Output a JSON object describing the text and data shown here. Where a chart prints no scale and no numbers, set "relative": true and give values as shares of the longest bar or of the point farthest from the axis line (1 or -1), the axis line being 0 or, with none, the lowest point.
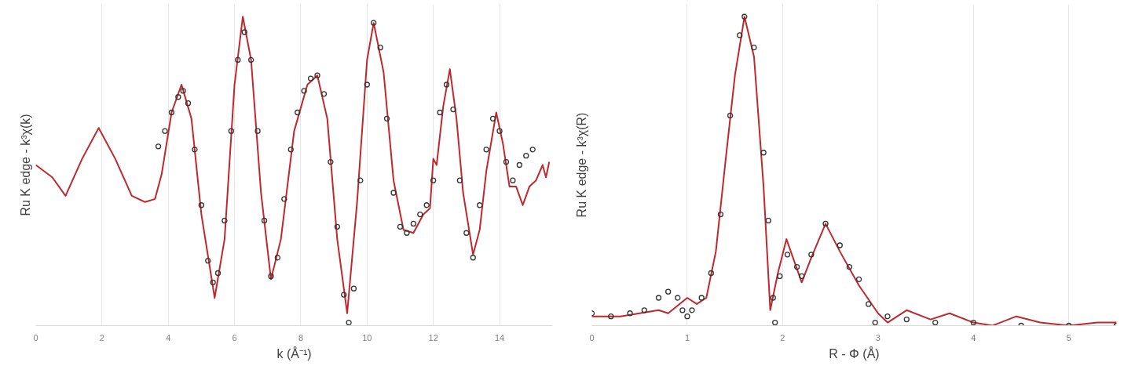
{
  "chart_data": [
    {
      "type": "line",
      "xlabel": "k (Å⁻¹)",
      "ylabel": "Ru K edge - k³χ(k)",
      "relative": true,
      "xlim": [
        0,
        15.6
      ],
      "xticks": [
        0,
        2,
        4,
        6,
        8,
        10,
        12,
        14
      ],
      "grid": "x",
      "series": [
        {
          "type": "line",
          "color": "#c0282d",
          "line_style": "solid",
          "x": [
            0,
            0.5,
            0.9,
            1.4,
            1.9,
            2.4,
            2.9,
            3.3,
            3.6,
            3.8,
            4.1,
            4.4,
            4.7,
            5.0,
            5.4,
            5.7,
            6.0,
            6.25,
            6.5,
            6.8,
            7.1,
            7.4,
            7.8,
            8.2,
            8.5,
            8.8,
            9.1,
            9.4,
            9.7,
            10.0,
            10.2,
            10.5,
            10.8,
            11.1,
            11.4,
            11.7,
            11.9,
            12.0,
            12.1,
            12.3,
            12.5,
            12.7,
            12.9,
            13.2,
            13.4,
            13.6,
            13.9,
            14.1,
            14.3,
            14.5,
            14.7,
            14.9,
            15.1,
            15.3,
            15.4,
            15.5
          ],
          "values": [
            0.52,
            0.48,
            0.42,
            0.54,
            0.64,
            0.54,
            0.42,
            0.4,
            0.41,
            0.49,
            0.69,
            0.78,
            0.67,
            0.36,
            0.09,
            0.28,
            0.78,
            1.0,
            0.86,
            0.43,
            0.15,
            0.28,
            0.63,
            0.78,
            0.81,
            0.67,
            0.28,
            0.04,
            0.4,
            0.86,
            0.98,
            0.82,
            0.47,
            0.31,
            0.3,
            0.36,
            0.38,
            0.54,
            0.52,
            0.71,
            0.83,
            0.67,
            0.43,
            0.23,
            0.31,
            0.5,
            0.69,
            0.59,
            0.45,
            0.45,
            0.39,
            0.45,
            0.47,
            0.52,
            0.48,
            0.53
          ]
        },
        {
          "type": "scatter",
          "color": "#333333",
          "marker": "circle",
          "x": [
            3.7,
            3.9,
            4.1,
            4.3,
            4.45,
            4.6,
            4.8,
            5.0,
            5.2,
            5.35,
            5.5,
            5.7,
            5.9,
            6.1,
            6.3,
            6.5,
            6.7,
            6.9,
            7.1,
            7.3,
            7.5,
            7.7,
            7.9,
            8.1,
            8.3,
            8.5,
            8.7,
            8.9,
            9.1,
            9.3,
            9.45,
            9.6,
            9.8,
            10.0,
            10.2,
            10.4,
            10.6,
            10.8,
            11.0,
            11.2,
            11.4,
            11.6,
            11.8,
            12.0,
            12.2,
            12.4,
            12.6,
            12.8,
            13.0,
            13.2,
            13.4,
            13.6,
            13.8,
            14.0,
            14.2,
            14.4,
            14.6,
            14.8,
            15.0
          ],
          "values": [
            0.58,
            0.63,
            0.69,
            0.74,
            0.76,
            0.72,
            0.57,
            0.39,
            0.21,
            0.14,
            0.17,
            0.34,
            0.63,
            0.86,
            0.95,
            0.86,
            0.63,
            0.34,
            0.16,
            0.22,
            0.41,
            0.57,
            0.69,
            0.76,
            0.8,
            0.81,
            0.75,
            0.53,
            0.32,
            0.1,
            0.01,
            0.12,
            0.47,
            0.78,
            0.98,
            0.9,
            0.67,
            0.43,
            0.32,
            0.3,
            0.33,
            0.36,
            0.39,
            0.47,
            0.69,
            0.78,
            0.7,
            0.47,
            0.3,
            0.22,
            0.39,
            0.57,
            0.67,
            0.63,
            0.53,
            0.47,
            0.52,
            0.55,
            0.57
          ]
        }
      ]
    },
    {
      "type": "line",
      "xlabel": "R - Φ (Å)",
      "ylabel": "Ru K edge - k³χ(R)",
      "relative": true,
      "xlim": [
        0,
        5.5
      ],
      "xticks": [
        0,
        1,
        2,
        3,
        4,
        5
      ],
      "grid": "x",
      "series": [
        {
          "type": "line",
          "color": "#c0282d",
          "line_style": "solid",
          "x": [
            0,
            0.3,
            0.5,
            0.7,
            0.8,
            1.0,
            1.1,
            1.2,
            1.3,
            1.4,
            1.5,
            1.6,
            1.7,
            1.8,
            1.87,
            1.95,
            2.04,
            2.2,
            2.3,
            2.45,
            2.6,
            2.8,
            3.0,
            3.1,
            3.3,
            3.55,
            3.75,
            4.0,
            4.2,
            4.45,
            4.7,
            5.0,
            5.3,
            5.5
          ],
          "values": [
            0.03,
            0.03,
            0.04,
            0.05,
            0.04,
            0.09,
            0.07,
            0.09,
            0.24,
            0.53,
            0.81,
            1.0,
            0.87,
            0.45,
            0.05,
            0.17,
            0.28,
            0.14,
            0.22,
            0.33,
            0.24,
            0.13,
            0.04,
            0.01,
            0.05,
            0.02,
            0.04,
            0.01,
            0.0,
            0.03,
            0.01,
            0.0,
            0.01,
            0.01
          ]
        },
        {
          "type": "scatter",
          "color": "#333333",
          "marker": "circle",
          "x": [
            0,
            0.2,
            0.4,
            0.55,
            0.7,
            0.8,
            0.9,
            0.95,
            1.0,
            1.05,
            1.15,
            1.25,
            1.35,
            1.45,
            1.55,
            1.6,
            1.7,
            1.8,
            1.85,
            1.9,
            1.92,
            1.97,
            2.05,
            2.15,
            2.2,
            2.3,
            2.45,
            2.6,
            2.7,
            2.8,
            2.9,
            2.97,
            3.1,
            3.3,
            3.6,
            4.0,
            4.5,
            5.0,
            5.5
          ],
          "values": [
            0.04,
            0.03,
            0.04,
            0.05,
            0.09,
            0.11,
            0.09,
            0.05,
            0.03,
            0.05,
            0.09,
            0.17,
            0.36,
            0.68,
            0.94,
            1.0,
            0.9,
            0.56,
            0.34,
            0.09,
            0.01,
            0.16,
            0.23,
            0.19,
            0.16,
            0.23,
            0.33,
            0.26,
            0.19,
            0.15,
            0.07,
            0.01,
            0.03,
            0.02,
            0.01,
            0.01,
            0.0,
            0.0,
            0.0
          ]
        }
      ]
    }
  ]
}
